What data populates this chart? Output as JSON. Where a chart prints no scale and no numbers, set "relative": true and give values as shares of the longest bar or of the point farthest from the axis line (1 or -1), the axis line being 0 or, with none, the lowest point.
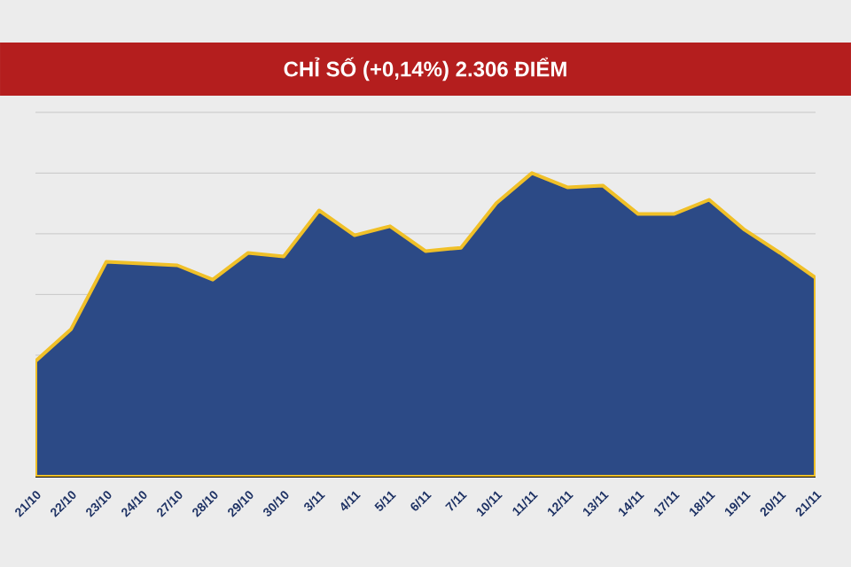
{
  "chart_data": {
    "type": "area",
    "title": "CHỈ SỐ (+0,14%) 2.306 ĐIỂM",
    "relative": true,
    "grid": "y",
    "legend": false,
    "categories": [
      "21/10",
      "22/10",
      "23/10",
      "24/10",
      "27/10",
      "28/10",
      "29/10",
      "30/10",
      "3/11",
      "4/11",
      "5/11",
      "6/11",
      "7/11",
      "10/11",
      "11/11",
      "12/11",
      "13/11",
      "14/11",
      "17/11",
      "18/11",
      "19/11",
      "20/11",
      "21/11"
    ],
    "series": [
      {
        "color": "#2c4a86",
        "values": [
          0.38,
          0.485,
          0.708,
          0.702,
          0.696,
          0.649,
          0.737,
          0.725,
          0.877,
          0.795,
          0.825,
          0.743,
          0.754,
          0.901,
          1,
          0.953,
          0.959,
          0.865,
          0.865,
          0.912,
          0.813,
          0.737,
          0.655
        ]
      }
    ]
  }
}
